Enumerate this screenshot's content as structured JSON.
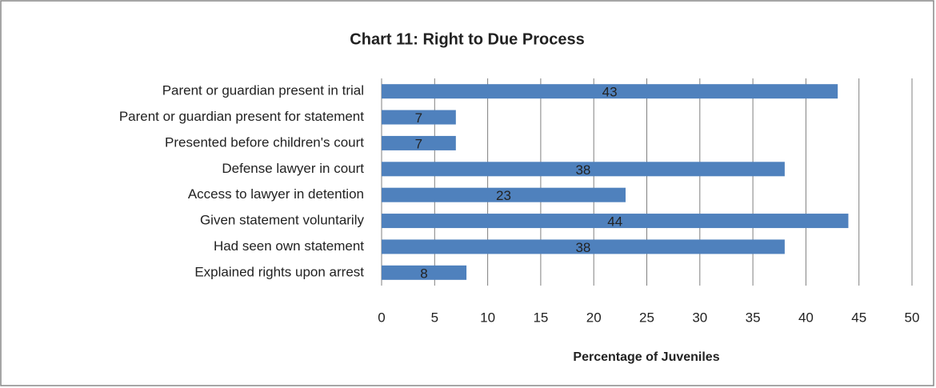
{
  "chart_data": {
    "type": "bar",
    "orientation": "horizontal",
    "title": "Chart 11: Right to Due Process",
    "x_label": "Percentage of Juveniles",
    "categories": [
      "Parent or guardian present in trial",
      "Parent or guardian present for statement",
      "Presented before children's court",
      "Defense lawyer in court",
      "Access to lawyer in detention",
      "Given statement voluntarily",
      "Had seen own statement",
      "Explained rights upon arrest"
    ],
    "values": [
      43,
      7,
      7,
      38,
      23,
      44,
      38,
      8
    ],
    "color": "#4f81bd",
    "xlim": [
      0,
      50
    ],
    "xticks": [
      0,
      5,
      10,
      15,
      20,
      25,
      30,
      35,
      40,
      45,
      50
    ],
    "grid": true
  }
}
